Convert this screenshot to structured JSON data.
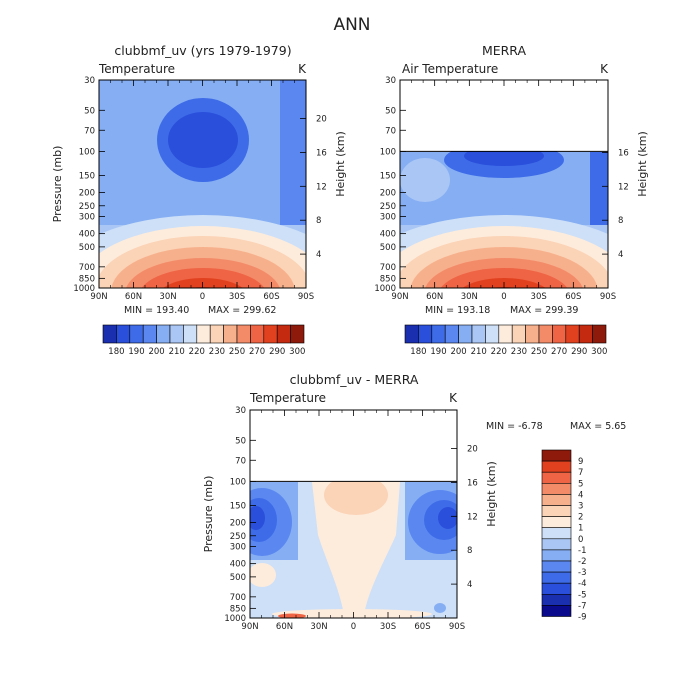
{
  "figure": {
    "title": "ANN"
  },
  "colors": {
    "abs_palette": [
      "#1a2fb0",
      "#2a4fdb",
      "#3e6ce8",
      "#5b88f0",
      "#86aef3",
      "#a9c6f5",
      "#cde0f8",
      "#fdecdc",
      "#fbd3b6",
      "#f7b08c",
      "#f38b69",
      "#ef6444",
      "#e2411f",
      "#c42a10",
      "#8e1a0c"
    ],
    "diff_palette": [
      "#0a0a8c",
      "#1a2fb0",
      "#2a4fdb",
      "#3e6ce8",
      "#5b88f0",
      "#86aef3",
      "#a9c6f5",
      "#cde0f8",
      "#fdecdc",
      "#fbd3b6",
      "#f7b08c",
      "#f38b69",
      "#ef6444",
      "#e2411f",
      "#8e1a0c"
    ]
  },
  "chart_data": [
    {
      "type": "heatmap",
      "title": "clubbmf_uv (yrs 1979-1979)",
      "variable": "Temperature",
      "units": "K",
      "ylabel": "Pressure (mb)",
      "y2label": "Height (km)",
      "x_ticks": [
        "90N",
        "60N",
        "30N",
        "0",
        "30S",
        "60S",
        "90S"
      ],
      "y_ticks": [
        "30",
        "50",
        "70",
        "100",
        "150",
        "200",
        "250",
        "300",
        "400",
        "500",
        "700",
        "850",
        "1000"
      ],
      "y2_ticks": [
        "20",
        "16",
        "12",
        "8",
        "4"
      ],
      "min_label": "MIN = 193.40",
      "max_label": "MAX = 299.62",
      "colorbar_labels": [
        "180",
        "190",
        "200",
        "210",
        "220",
        "230",
        "250",
        "270",
        "290",
        "300"
      ],
      "y_range_mb": [
        30,
        1000
      ],
      "x_range_lat": [
        90,
        -90
      ],
      "model_top_mb": 30
    },
    {
      "type": "heatmap",
      "title": "MERRA",
      "variable": "Air Temperature",
      "units": "K",
      "ylabel": "",
      "y2label": "Height (km)",
      "x_ticks": [
        "90N",
        "60N",
        "30N",
        "0",
        "30S",
        "60S",
        "90S"
      ],
      "y_ticks": [
        "30",
        "50",
        "70",
        "100",
        "150",
        "200",
        "250",
        "300",
        "400",
        "500",
        "700",
        "850",
        "1000"
      ],
      "y2_ticks": [
        "16",
        "12",
        "8",
        "4"
      ],
      "min_label": "MIN = 193.18",
      "max_label": "MAX = 299.39",
      "colorbar_labels": [
        "180",
        "190",
        "200",
        "210",
        "220",
        "230",
        "250",
        "270",
        "290",
        "300"
      ],
      "y_range_mb": [
        30,
        1000
      ],
      "x_range_lat": [
        90,
        -90
      ],
      "model_top_mb": 100
    },
    {
      "type": "heatmap",
      "title": "clubbmf_uv - MERRA",
      "variable": "Temperature",
      "units": "K",
      "ylabel": "Pressure (mb)",
      "y2label": "Height (km)",
      "x_ticks": [
        "90N",
        "60N",
        "30N",
        "0",
        "30S",
        "60S",
        "90S"
      ],
      "y_ticks": [
        "30",
        "50",
        "70",
        "100",
        "150",
        "200",
        "250",
        "300",
        "400",
        "500",
        "700",
        "850",
        "1000"
      ],
      "y2_ticks": [
        "20",
        "16",
        "12",
        "8",
        "4"
      ],
      "min_label": "MIN =  -6.78",
      "max_label": "MAX =   5.65",
      "colorbar_labels": [
        "9",
        "7",
        "5",
        "4",
        "3",
        "2",
        "1",
        "0",
        "-1",
        "-2",
        "-3",
        "-4",
        "-5",
        "-7",
        "-9"
      ],
      "y_range_mb": [
        30,
        1000
      ],
      "x_range_lat": [
        90,
        -90
      ],
      "model_top_mb": 100
    }
  ]
}
